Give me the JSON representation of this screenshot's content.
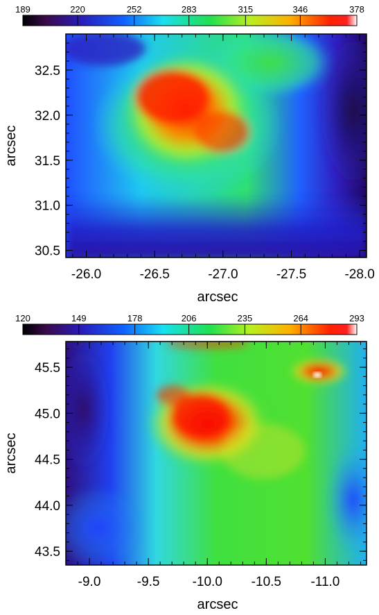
{
  "chart_data": [
    {
      "type": "heatmap",
      "title": "",
      "xlabel": "arcsec",
      "ylabel": "arcsec",
      "xlim": [
        -25.85,
        -28.05
      ],
      "ylim": [
        30.42,
        32.9
      ],
      "x_ticks": [
        "-26.0",
        "-26.5",
        "-27.0",
        "-27.5",
        "-28.0"
      ],
      "y_ticks": [
        "30.5",
        "31.0",
        "31.5",
        "32.0",
        "32.5"
      ],
      "colorbar": {
        "ticks": [
          "189",
          "220",
          "252",
          "283",
          "315",
          "346",
          "378"
        ],
        "min": 189,
        "max": 378,
        "colormap": "rainbow (black-purple-blue-cyan-green-yellow-red-white)"
      },
      "features": [
        {
          "description": "intensity peak",
          "x": -26.6,
          "y": 32.15,
          "value": 370
        },
        {
          "description": "secondary bright region",
          "x": -27.1,
          "y": 31.85,
          "value": 345
        },
        {
          "description": "dark band",
          "x": -28.0,
          "y": 32.0,
          "value": 195
        },
        {
          "description": "dim lower region",
          "x": -27.0,
          "y": 30.55,
          "value": 225
        }
      ]
    },
    {
      "type": "heatmap",
      "title": "",
      "xlabel": "arcsec",
      "ylabel": "arcsec",
      "xlim": [
        -8.8,
        -11.35
      ],
      "ylim": [
        43.35,
        45.78
      ],
      "x_ticks": [
        "-9.0",
        "-9.5",
        "-10.0",
        "-10.5",
        "-11.0"
      ],
      "y_ticks": [
        "43.5",
        "44.0",
        "44.5",
        "45.0",
        "45.5"
      ],
      "colorbar": {
        "ticks": [
          "120",
          "149",
          "178",
          "206",
          "235",
          "264",
          "293"
        ],
        "min": 120,
        "max": 293,
        "colormap": "rainbow (black-purple-blue-cyan-green-yellow-red-white)"
      },
      "features": [
        {
          "description": "central bright region",
          "x": -10.1,
          "y": 44.75,
          "value": 285
        },
        {
          "description": "saturated spot",
          "x": -10.95,
          "y": 45.42,
          "value": 293
        },
        {
          "description": "dark left region",
          "x": -8.9,
          "y": 45.0,
          "value": 135
        },
        {
          "description": "dim lower-left region",
          "x": -9.2,
          "y": 43.7,
          "value": 160
        }
      ]
    }
  ]
}
